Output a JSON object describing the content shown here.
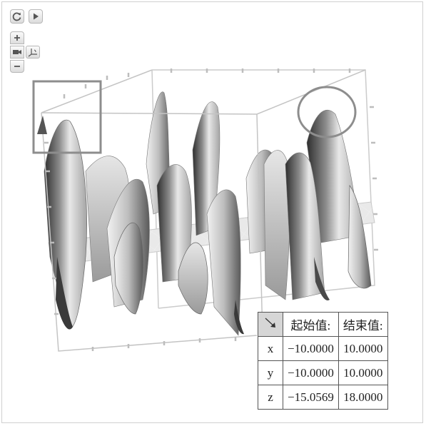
{
  "toolbar": {
    "icons": [
      "refresh-icon",
      "play-icon",
      "zoom-in-icon",
      "camera-icon",
      "axes-icon",
      "zoom-out-icon"
    ]
  },
  "colors": {
    "surface_dark": "#3a3a3a",
    "surface_light": "#f0f0f0",
    "box": "#c8c8c8",
    "highlight": "#888888"
  },
  "range_table": {
    "corner_icon": "arrow-down-right-icon",
    "headers": [
      "起始值:",
      "结束值:"
    ],
    "rows": [
      {
        "axis": "x",
        "start": "−10.0000",
        "end": "10.0000"
      },
      {
        "axis": "y",
        "start": "−10.0000",
        "end": "10.0000"
      },
      {
        "axis": "z",
        "start": "−15.0569",
        "end": "18.0000"
      }
    ]
  }
}
